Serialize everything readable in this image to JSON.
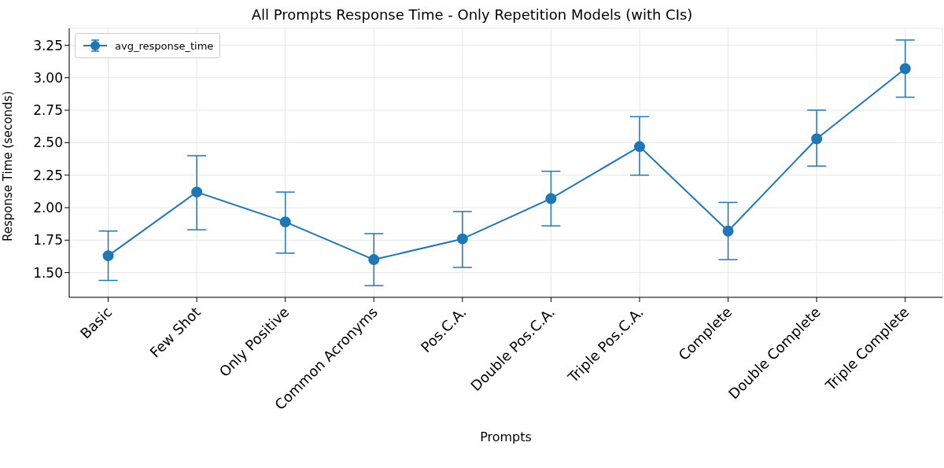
{
  "chart_data": {
    "type": "line",
    "title": "All Prompts Response Time - Only Repetition Models (with CIs)",
    "xlabel": "Prompts",
    "ylabel": "Response Time (seconds)",
    "categories": [
      "Basic",
      "Few Shot",
      "Only Positive",
      "Common Acronyms",
      "Pos.C.A.",
      "Double Pos.C.A.",
      "Triple Pos.C.A.",
      "Complete",
      "Double Complete",
      "Triple Complete"
    ],
    "series": [
      {
        "name": "avg_response_time",
        "color": "#1f77b4",
        "values": [
          1.63,
          2.12,
          1.89,
          1.6,
          1.76,
          2.07,
          2.47,
          1.82,
          2.53,
          3.07
        ],
        "errors": [
          [
            1.44,
            1.82
          ],
          [
            1.83,
            2.4
          ],
          [
            1.65,
            2.12
          ],
          [
            1.4,
            1.8
          ],
          [
            1.54,
            1.97
          ],
          [
            1.86,
            2.28
          ],
          [
            2.25,
            2.7
          ],
          [
            1.6,
            2.04
          ],
          [
            2.32,
            2.75
          ],
          [
            2.85,
            3.29
          ]
        ]
      }
    ],
    "ylim": [
      1.31,
      3.38
    ],
    "yticks": [
      {
        "value": 1.5,
        "label": "1.50"
      },
      {
        "value": 1.75,
        "label": "1.75"
      },
      {
        "value": 2,
        "label": "2.00"
      },
      {
        "value": 2.25,
        "label": "2.25"
      },
      {
        "value": 2.5,
        "label": "2.50"
      },
      {
        "value": 2.75,
        "label": "2.75"
      },
      {
        "value": 3,
        "label": "3.00"
      },
      {
        "value": 3.25,
        "label": "3.25"
      }
    ],
    "grid": true,
    "legend": "top left",
    "marker": "circle",
    "line_style": "solid"
  }
}
